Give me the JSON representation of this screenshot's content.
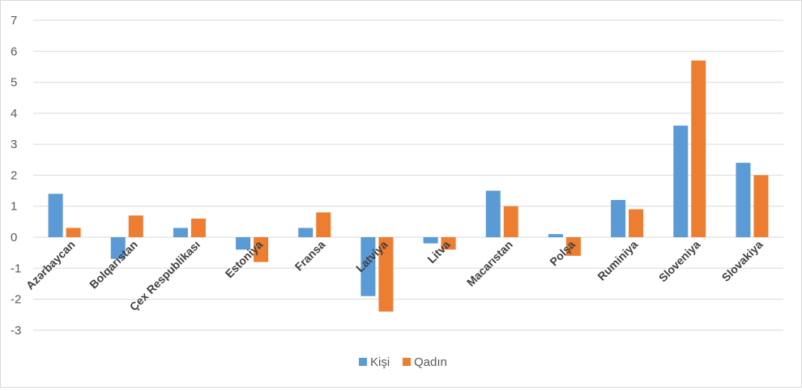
{
  "chart_data": {
    "type": "bar",
    "categories": [
      "Azərbaycan",
      "Bolqarıstan",
      "Çex Respublikası",
      "Estoniya",
      "Fransa",
      "Latviya",
      "Litva",
      "Macarıstan",
      "Polşa",
      "Ruminiya",
      "Sloveniya",
      "Slovakiya"
    ],
    "series": [
      {
        "name": "Kişi",
        "color": "#5b9bd5",
        "values": [
          1.4,
          -0.7,
          0.3,
          -0.4,
          0.3,
          -1.9,
          -0.2,
          1.5,
          0.1,
          1.2,
          3.6,
          2.4
        ]
      },
      {
        "name": "Qadın",
        "color": "#ed7d31",
        "values": [
          0.3,
          0.7,
          0.6,
          -0.8,
          0.8,
          -2.4,
          -0.4,
          1.0,
          -0.6,
          0.9,
          5.7,
          2.0
        ]
      }
    ],
    "ylim": [
      -3,
      7
    ],
    "yticks": [
      -3,
      -2,
      -1,
      0,
      1,
      2,
      3,
      4,
      5,
      6,
      7
    ],
    "grid": true,
    "legend": "bottom"
  }
}
